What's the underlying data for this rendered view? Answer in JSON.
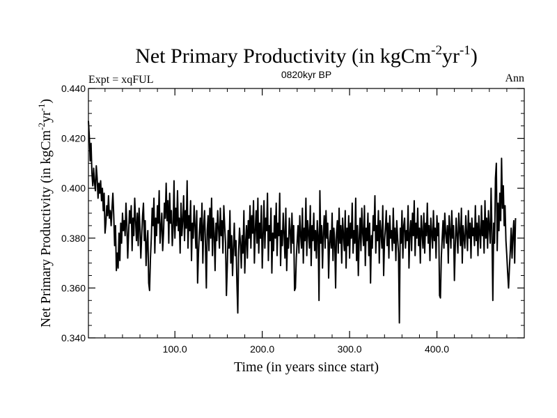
{
  "chart_data": {
    "type": "line",
    "title": "Net Primary Productivity (in kgCm",
    "title_sup1": "-2",
    "title_mid": "yr",
    "title_sup2": "-1",
    "title_end": ")",
    "left_label": "Expt = xqFUL",
    "center_label": "0820kyr BP",
    "right_label": "Ann",
    "xlabel": "Time (in years since start)",
    "ylabel": "Net Primary Productivity (in kgCm",
    "ylabel_sup1": "-2",
    "ylabel_mid": "yr",
    "ylabel_sup2": "-1",
    "ylabel_end": ")",
    "xlim": [
      1,
      500
    ],
    "ylim": [
      0.34,
      0.44
    ],
    "x_ticks": [
      100,
      200,
      300,
      400
    ],
    "x_tick_labels": [
      "100.0",
      "200.0",
      "300.0",
      "400.0"
    ],
    "y_ticks": [
      0.34,
      0.36,
      0.38,
      0.4,
      0.42,
      0.44
    ],
    "y_tick_labels": [
      "0.340",
      "0.360",
      "0.380",
      "0.400",
      "0.420",
      "0.440"
    ],
    "x_minor_step": 20,
    "y_minor_step": 0.005,
    "x_start": 1,
    "x_step": 1,
    "values": [
      0.427,
      0.421,
      0.411,
      0.418,
      0.406,
      0.401,
      0.408,
      0.402,
      0.399,
      0.409,
      0.404,
      0.396,
      0.402,
      0.398,
      0.403,
      0.395,
      0.4,
      0.391,
      0.398,
      0.382,
      0.386,
      0.393,
      0.389,
      0.397,
      0.388,
      0.391,
      0.385,
      0.392,
      0.398,
      0.389,
      0.377,
      0.385,
      0.367,
      0.374,
      0.368,
      0.382,
      0.371,
      0.386,
      0.378,
      0.39,
      0.383,
      0.387,
      0.381,
      0.394,
      0.385,
      0.372,
      0.382,
      0.391,
      0.386,
      0.393,
      0.375,
      0.388,
      0.381,
      0.396,
      0.387,
      0.379,
      0.39,
      0.377,
      0.392,
      0.384,
      0.372,
      0.381,
      0.389,
      0.394,
      0.379,
      0.387,
      0.369,
      0.378,
      0.383,
      0.362,
      0.359,
      0.372,
      0.38,
      0.392,
      0.385,
      0.396,
      0.374,
      0.388,
      0.381,
      0.393,
      0.386,
      0.399,
      0.378,
      0.384,
      0.39,
      0.375,
      0.382,
      0.394,
      0.388,
      0.402,
      0.387,
      0.395,
      0.378,
      0.398,
      0.386,
      0.391,
      0.377,
      0.384,
      0.403,
      0.38,
      0.392,
      0.385,
      0.399,
      0.383,
      0.388,
      0.374,
      0.394,
      0.381,
      0.387,
      0.397,
      0.379,
      0.391,
      0.384,
      0.403,
      0.376,
      0.389,
      0.383,
      0.395,
      0.371,
      0.386,
      0.38,
      0.393,
      0.385,
      0.376,
      0.391,
      0.362,
      0.374,
      0.382,
      0.388,
      0.379,
      0.394,
      0.37,
      0.385,
      0.391,
      0.377,
      0.36,
      0.383,
      0.389,
      0.375,
      0.392,
      0.38,
      0.396,
      0.373,
      0.388,
      0.382,
      0.367,
      0.386,
      0.379,
      0.391,
      0.384,
      0.376,
      0.392,
      0.381,
      0.387,
      0.374,
      0.393,
      0.385,
      0.378,
      0.357,
      0.369,
      0.383,
      0.376,
      0.391,
      0.37,
      0.381,
      0.365,
      0.376,
      0.386,
      0.373,
      0.379,
      0.362,
      0.35,
      0.375,
      0.384,
      0.378,
      0.368,
      0.381,
      0.374,
      0.391,
      0.366,
      0.378,
      0.385,
      0.372,
      0.387,
      0.38,
      0.393,
      0.376,
      0.389,
      0.382,
      0.395,
      0.37,
      0.383,
      0.391,
      0.378,
      0.396,
      0.374,
      0.386,
      0.38,
      0.393,
      0.368,
      0.381,
      0.395,
      0.376,
      0.388,
      0.383,
      0.398,
      0.371,
      0.385,
      0.379,
      0.392,
      0.366,
      0.382,
      0.375,
      0.389,
      0.38,
      0.394,
      0.373,
      0.386,
      0.381,
      0.398,
      0.369,
      0.383,
      0.377,
      0.39,
      0.382,
      0.372,
      0.392,
      0.367,
      0.38,
      0.376,
      0.388,
      0.383,
      0.374,
      0.39,
      0.378,
      0.385,
      0.359,
      0.36,
      0.372,
      0.379,
      0.385,
      0.374,
      0.389,
      0.381,
      0.376,
      0.392,
      0.37,
      0.384,
      0.379,
      0.396,
      0.373,
      0.387,
      0.382,
      0.376,
      0.393,
      0.369,
      0.385,
      0.379,
      0.39,
      0.375,
      0.383,
      0.372,
      0.387,
      0.381,
      0.355,
      0.399,
      0.378,
      0.385,
      0.368,
      0.382,
      0.389,
      0.376,
      0.391,
      0.38,
      0.386,
      0.364,
      0.378,
      0.383,
      0.376,
      0.39,
      0.371,
      0.384,
      0.379,
      0.36,
      0.382,
      0.387,
      0.374,
      0.392,
      0.378,
      0.385,
      0.37,
      0.388,
      0.381,
      0.375,
      0.391,
      0.368,
      0.384,
      0.377,
      0.389,
      0.372,
      0.386,
      0.38,
      0.394,
      0.374,
      0.383,
      0.378,
      0.396,
      0.371,
      0.385,
      0.365,
      0.38,
      0.388,
      0.375,
      0.392,
      0.382,
      0.377,
      0.393,
      0.369,
      0.384,
      0.379,
      0.39,
      0.373,
      0.386,
      0.362,
      0.381,
      0.376,
      0.389,
      0.383,
      0.397,
      0.374,
      0.385,
      0.379,
      0.391,
      0.37,
      0.387,
      0.382,
      0.376,
      0.393,
      0.365,
      0.379,
      0.384,
      0.391,
      0.377,
      0.386,
      0.372,
      0.389,
      0.38,
      0.383,
      0.375,
      0.392,
      0.378,
      0.384,
      0.371,
      0.387,
      0.38,
      0.374,
      0.346,
      0.384,
      0.378,
      0.391,
      0.372,
      0.385,
      0.388,
      0.376,
      0.383,
      0.379,
      0.393,
      0.368,
      0.382,
      0.387,
      0.375,
      0.39,
      0.381,
      0.395,
      0.373,
      0.386,
      0.38,
      0.392,
      0.377,
      0.384,
      0.37,
      0.389,
      0.382,
      0.376,
      0.39,
      0.374,
      0.386,
      0.381,
      0.394,
      0.378,
      0.385,
      0.371,
      0.388,
      0.382,
      0.376,
      0.391,
      0.379,
      0.384,
      0.372,
      0.389,
      0.381,
      0.386,
      0.357,
      0.356,
      0.372,
      0.38,
      0.387,
      0.376,
      0.39,
      0.382,
      0.378,
      0.385,
      0.37,
      0.389,
      0.383,
      0.376,
      0.391,
      0.38,
      0.385,
      0.363,
      0.377,
      0.388,
      0.381,
      0.374,
      0.39,
      0.383,
      0.377,
      0.392,
      0.37,
      0.385,
      0.38,
      0.376,
      0.389,
      0.382,
      0.375,
      0.391,
      0.38,
      0.386,
      0.372,
      0.388,
      0.381,
      0.384,
      0.377,
      0.393,
      0.379,
      0.386,
      0.373,
      0.389,
      0.382,
      0.376,
      0.393,
      0.381,
      0.387,
      0.374,
      0.395,
      0.38,
      0.388,
      0.376,
      0.391,
      0.384,
      0.378,
      0.4,
      0.382,
      0.355,
      0.386,
      0.378,
      0.404,
      0.41,
      0.375,
      0.394,
      0.383,
      0.398,
      0.387,
      0.412,
      0.392,
      0.401,
      0.385,
      0.393,
      0.379,
      0.373,
      0.366,
      0.36,
      0.368,
      0.375,
      0.384,
      0.372,
      0.381,
      0.387,
      0.37,
      0.388
    ]
  }
}
